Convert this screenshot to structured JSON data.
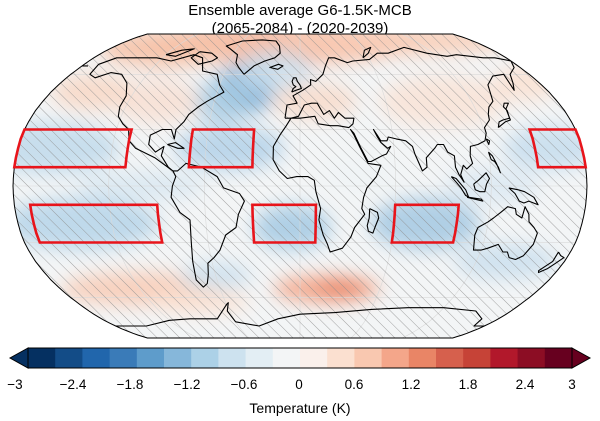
{
  "title_line1": "Ensemble average G6-1.5K-MCB",
  "title_line2": "(2065-2084) - (2020-2039)",
  "colorbar": {
    "label": "Temperature (K)",
    "min": -3,
    "max": 3,
    "ticks": [
      "−3",
      "−2.4",
      "−1.8",
      "−1.2",
      "−0.6",
      "0",
      "0.6",
      "1.2",
      "1.8",
      "2.4",
      "3"
    ],
    "tick_values": [
      -3,
      -2.4,
      -1.8,
      -1.2,
      -0.6,
      0,
      0.6,
      1.2,
      1.8,
      2.4,
      3
    ],
    "colors": [
      "#053061",
      "#134c87",
      "#2166ac",
      "#3a7bb8",
      "#5e9ccb",
      "#86b7da",
      "#acd1e7",
      "#cde2ef",
      "#e3eef4",
      "#f3f5f6",
      "#faf0eb",
      "#fbe0d0",
      "#f9c8b0",
      "#f4a68a",
      "#e98566",
      "#d6604d",
      "#c64337",
      "#b2182b",
      "#8c0d24",
      "#67001f"
    ]
  },
  "map": {
    "projection": "Robinson",
    "hatching": "non-significant regions",
    "highlight_color": "#e8141b",
    "mcb_regions": [
      {
        "name": "North Pacific (east)",
        "lon": [
          -180,
          -110
        ],
        "lat": [
          10,
          30
        ]
      },
      {
        "name": "North Pacific (west)",
        "lon": [
          150,
          180
        ],
        "lat": [
          10,
          30
        ]
      },
      {
        "name": "South Pacific",
        "lon": [
          -170,
          -90
        ],
        "lat": [
          -30,
          -10
        ]
      },
      {
        "name": "South Atlantic",
        "lon": [
          -30,
          10
        ],
        "lat": [
          -30,
          -10
        ]
      },
      {
        "name": "North Atlantic",
        "lon": [
          -70,
          -30
        ],
        "lat": [
          10,
          30
        ]
      },
      {
        "name": "Indian Ocean",
        "lon": [
          60,
          100
        ],
        "lat": [
          -30,
          -10
        ]
      }
    ]
  }
}
